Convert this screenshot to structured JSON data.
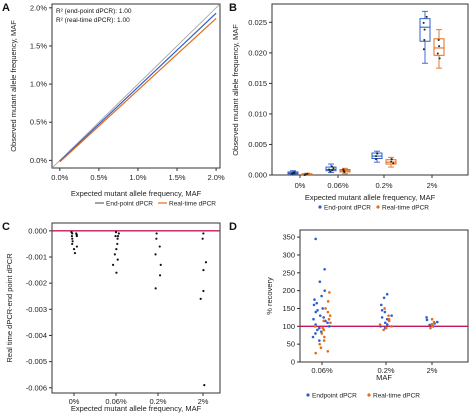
{
  "colors": {
    "endpoint": "#2e5fcc",
    "realtime": "#e06d1d",
    "reference": "#c2185b",
    "identity": "#9a9a9a",
    "black": "#111111"
  },
  "panels": {
    "A": {
      "label": "A"
    },
    "B": {
      "label": "B"
    },
    "C": {
      "label": "C"
    },
    "D": {
      "label": "D"
    }
  },
  "chart_data": [
    {
      "panel": "A",
      "type": "line",
      "xlabel": "Expected mutant allele frequency, MAF",
      "ylabel": "Observed mutant allele frequency, MAF",
      "xlim": [
        -0.001,
        0.0205
      ],
      "ylim": [
        -0.001,
        0.0205
      ],
      "xticks": [
        0.0,
        0.005,
        0.01,
        0.015,
        0.02
      ],
      "xtick_labels": [
        "0.0%",
        "0.5%",
        "1.0%",
        "1.5%",
        "2.0%"
      ],
      "yticks": [
        0.0,
        0.005,
        0.01,
        0.015,
        0.02
      ],
      "ytick_labels": [
        "0.0%",
        "0.5%",
        "1.0%",
        "1.5%",
        "2.0%"
      ],
      "annotations": [
        "R² (end-point dPCR): 1.00",
        "R² (real-time dPCR): 1.00"
      ],
      "series": [
        {
          "name": "End-point dPCR",
          "x": [
            0.0,
            0.02
          ],
          "y": [
            -0.0001,
            0.0193
          ]
        },
        {
          "name": "Real-time dPCR",
          "x": [
            0.0,
            0.02
          ],
          "y": [
            -0.0002,
            0.0186
          ]
        }
      ],
      "legend": [
        "End-point dPCR",
        "Real-time dPCR"
      ],
      "legend_position": "bottom"
    },
    {
      "panel": "B",
      "type": "box",
      "xlabel": "Expected mutant allele frequency, MAF",
      "ylabel": "Observed mutant allele frequency, MAF",
      "categories": [
        "0%",
        "0.06%",
        "0.2%",
        "2%"
      ],
      "ylim": [
        0,
        0.028
      ],
      "yticks": [
        0.0,
        0.005,
        0.01,
        0.015,
        0.02,
        0.025
      ],
      "ytick_labels": [
        "0.000",
        "0.005",
        "0.010",
        "0.015",
        "0.020",
        "0.025"
      ],
      "series": [
        {
          "name": "End-point dPCR",
          "boxes": [
            {
              "min": 0.0001,
              "q1": 0.0002,
              "median": 0.0003,
              "q3": 0.0005,
              "max": 0.0007,
              "points": [
                0.0002,
                0.0003,
                0.0004,
                0.0005,
                0.0003
              ]
            },
            {
              "min": 0.0004,
              "q1": 0.0007,
              "median": 0.0009,
              "q3": 0.0013,
              "max": 0.0018,
              "points": [
                0.0006,
                0.0009,
                0.0011,
                0.0014,
                0.0008
              ]
            },
            {
              "min": 0.0021,
              "q1": 0.0027,
              "median": 0.0031,
              "q3": 0.0036,
              "max": 0.0039,
              "points": [
                0.0026,
                0.0031,
                0.0035
              ]
            },
            {
              "min": 0.0183,
              "q1": 0.0219,
              "median": 0.0242,
              "q3": 0.0256,
              "max": 0.0268,
              "points": [
                0.0221,
                0.0238,
                0.0249,
                0.0259,
                0.0206
              ]
            }
          ]
        },
        {
          "name": "Real-time dPCR",
          "boxes": [
            {
              "min": 0.0,
              "q1": 0.0,
              "median": 0.0001,
              "q3": 0.0002,
              "max": 0.0003,
              "points": [
                0.0001,
                0.0002,
                0.0
              ]
            },
            {
              "min": 0.0002,
              "q1": 0.0005,
              "median": 0.0007,
              "q3": 0.0009,
              "max": 0.0011,
              "points": [
                0.0005,
                0.0007,
                0.0009,
                0.0006
              ]
            },
            {
              "min": 0.0013,
              "q1": 0.0018,
              "median": 0.0021,
              "q3": 0.0025,
              "max": 0.0029,
              "points": [
                0.0019,
                0.0022,
                0.0026
              ]
            },
            {
              "min": 0.0175,
              "q1": 0.0196,
              "median": 0.0208,
              "q3": 0.0223,
              "max": 0.0238,
              "points": [
                0.0199,
                0.0211,
                0.0221,
                0.0191
              ]
            }
          ]
        }
      ],
      "legend": [
        "End-point dPCR",
        "Real-time dPCR"
      ],
      "legend_position": "bottom"
    },
    {
      "panel": "C",
      "type": "scatter",
      "xlabel": "Expected mutant allele frequency, MAF",
      "ylabel": "Real time dPCR-end point dPCR",
      "categories": [
        "0%",
        "0.06%",
        "0.2%",
        "2%"
      ],
      "ylim": [
        -0.0062,
        0.0003
      ],
      "yticks": [
        0.0,
        -0.001,
        -0.002,
        -0.003,
        -0.004,
        -0.005,
        -0.006
      ],
      "ytick_labels": [
        "0.000",
        "-0.001",
        "-0.002",
        "-0.003",
        "-0.004",
        "-0.005",
        "-0.006"
      ],
      "reference_line": 0.0,
      "values": [
        [
          -5e-05,
          -0.0001,
          -0.00015,
          -0.0002,
          -0.0003,
          -0.0004,
          -0.0005,
          -0.0006,
          -0.0007,
          -0.00085,
          -0.0001,
          -0.0002
        ],
        [
          -5e-05,
          -0.0001,
          -0.0002,
          -0.0003,
          -0.0005,
          -0.0007,
          -0.0009,
          -0.0011,
          -0.0013,
          -0.0016,
          -0.0002
        ],
        [
          -0.0001,
          -0.0003,
          -0.0006,
          -0.0009,
          -0.0013,
          -0.0017,
          -0.0022
        ],
        [
          -0.0001,
          -0.0003,
          -0.0012,
          -0.0015,
          -0.0023,
          -0.0026,
          -0.0059
        ]
      ]
    },
    {
      "panel": "D",
      "type": "scatter",
      "xlabel": "MAF",
      "ylabel": "% recovery",
      "categories": [
        "0.06%",
        "0.2%",
        "2%"
      ],
      "ylim": [
        0,
        370
      ],
      "yticks": [
        0,
        50,
        100,
        150,
        200,
        250,
        300,
        350
      ],
      "ytick_labels": [
        "0",
        "50",
        "100",
        "150",
        "200",
        "250",
        "300",
        "350"
      ],
      "reference_line": 100,
      "series": [
        {
          "name": "Endpoint dPCR",
          "values": [
            [
              345,
              260,
              225,
              200,
              185,
              175,
              165,
              160,
              150,
              145,
              140,
              130,
              125,
              120,
              115,
              110,
              105,
              100,
              95,
              90,
              85,
              80,
              70,
              60
            ],
            [
              190,
              180,
              160,
              145,
              140,
              130,
              125,
              120,
              110,
              105,
              100,
              95
            ],
            [
              125,
              118,
              112,
              108,
              104,
              100
            ]
          ]
        },
        {
          "name": "Real-time dPCR",
          "values": [
            [
              195,
              170,
              150,
              140,
              130,
              120,
              115,
              110,
              100,
              95,
              90,
              80,
              70,
              60,
              50,
              40,
              30,
              25
            ],
            [
              150,
              130,
              120,
              115,
              105,
              100,
              95,
              90
            ],
            [
              120,
              112,
              106,
              100,
              95
            ]
          ]
        }
      ],
      "legend": [
        "Endpoint dPCR",
        "Real-time dPCR"
      ],
      "legend_position": "bottom"
    }
  ]
}
